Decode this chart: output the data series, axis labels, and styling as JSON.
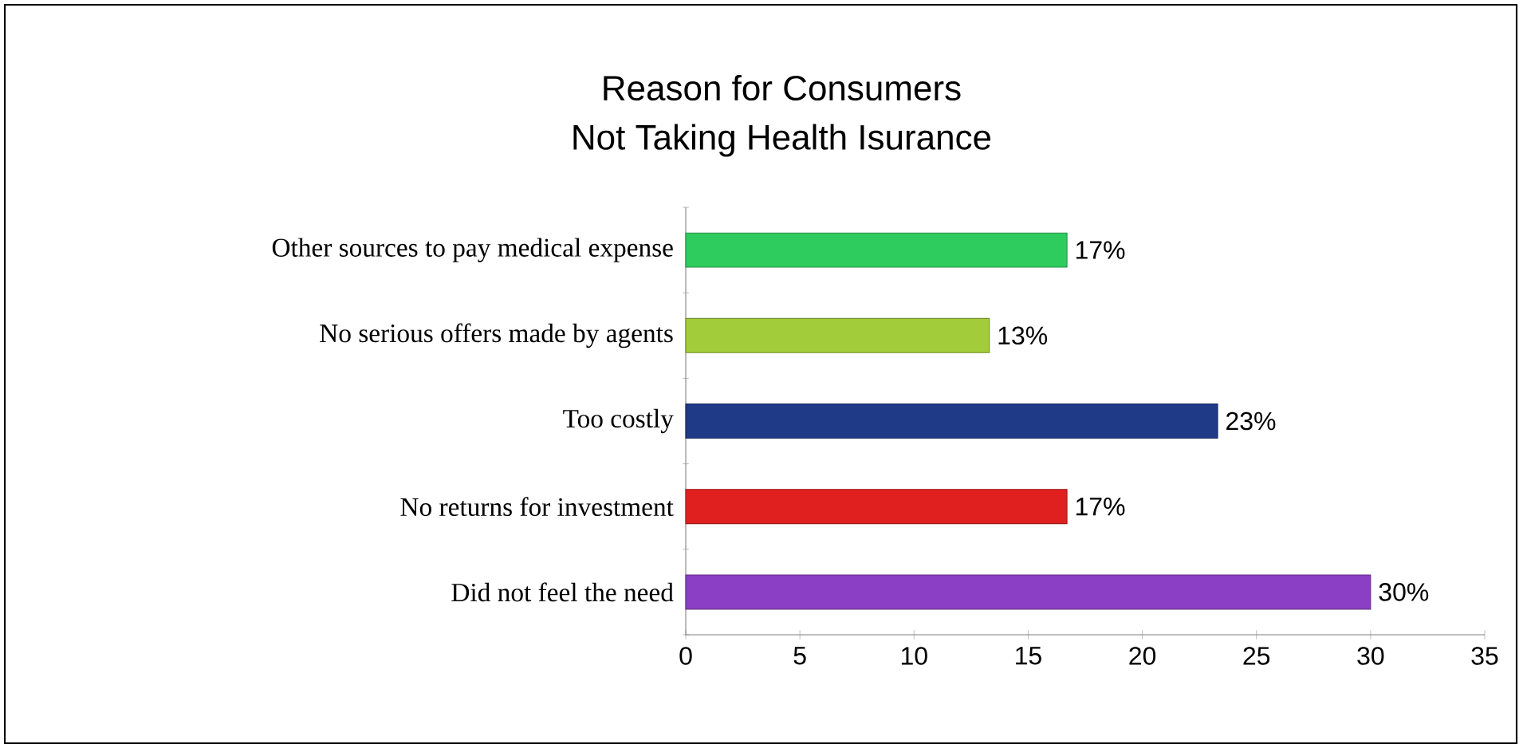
{
  "chart_data": {
    "type": "bar",
    "orientation": "horizontal",
    "title": "Reason for Consumers",
    "subtitle": "Not Taking Health Isurance",
    "categories": [
      "Other  sources to pay medical expense",
      "No serious offers made by agents",
      "Too costly",
      "No returns for investment",
      "Did not feel the need"
    ],
    "values": [
      16.7,
      13.3,
      23.3,
      16.7,
      30
    ],
    "value_labels": [
      "17%",
      "13%",
      "23%",
      "17%",
      "30%"
    ],
    "colors": [
      "#2ecc5f",
      "#a3cc3a",
      "#1f3a87",
      "#e0201f",
      "#8a3fc4"
    ],
    "xlim": [
      0,
      35
    ],
    "xticks": [
      0,
      5,
      10,
      15,
      20,
      25,
      30,
      35
    ]
  }
}
